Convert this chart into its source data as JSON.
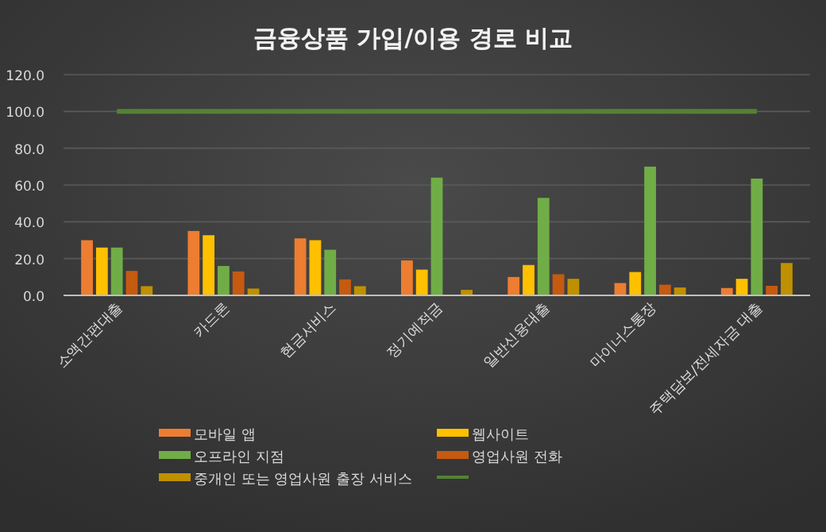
{
  "chart_data": {
    "type": "bar",
    "title": "금융상품 가입/이용 경로 비교",
    "categories": [
      "소액간편대출",
      "카드론",
      "현금서비스",
      "정기예적금",
      "일반신용대출",
      "마이너스통장",
      "주택담보/전세자금 대출"
    ],
    "series": [
      {
        "name": "모바일 앱",
        "color": "#ed7d31",
        "values": [
          30,
          35,
          31,
          19,
          10,
          6.7,
          4
        ]
      },
      {
        "name": "웹사이트",
        "color": "#ffc000",
        "values": [
          26,
          32.7,
          30,
          14,
          16.5,
          12.7,
          9
        ]
      },
      {
        "name": "오프라인 지점",
        "color": "#70ad47",
        "values": [
          26,
          16,
          24.8,
          64,
          53,
          70,
          63.5
        ]
      },
      {
        "name": "영업사원 전화",
        "color": "#c55a11",
        "values": [
          13.3,
          13,
          8.7,
          0,
          11.5,
          5.8,
          5.2
        ]
      },
      {
        "name": "중개인 또는 영업사원 출장 서비스",
        "color": "#bf9000",
        "values": [
          5,
          3.7,
          5,
          3,
          9,
          4.3,
          17.6
        ]
      },
      {
        "type": "line",
        "color": "#548235",
        "values": [
          100,
          100,
          100,
          100,
          100,
          100,
          100
        ]
      }
    ],
    "ylim": [
      0,
      120
    ],
    "yticks": [
      {
        "value": 0,
        "label": "0.0"
      },
      {
        "value": 20,
        "label": "20.0"
      },
      {
        "value": 40,
        "label": "40.0"
      },
      {
        "value": 60,
        "label": "60.0"
      },
      {
        "value": 80,
        "label": "80.0"
      },
      {
        "value": 100,
        "label": "100.0"
      },
      {
        "value": 120,
        "label": "120.0"
      }
    ],
    "grid": "y",
    "legend": "bottom"
  }
}
